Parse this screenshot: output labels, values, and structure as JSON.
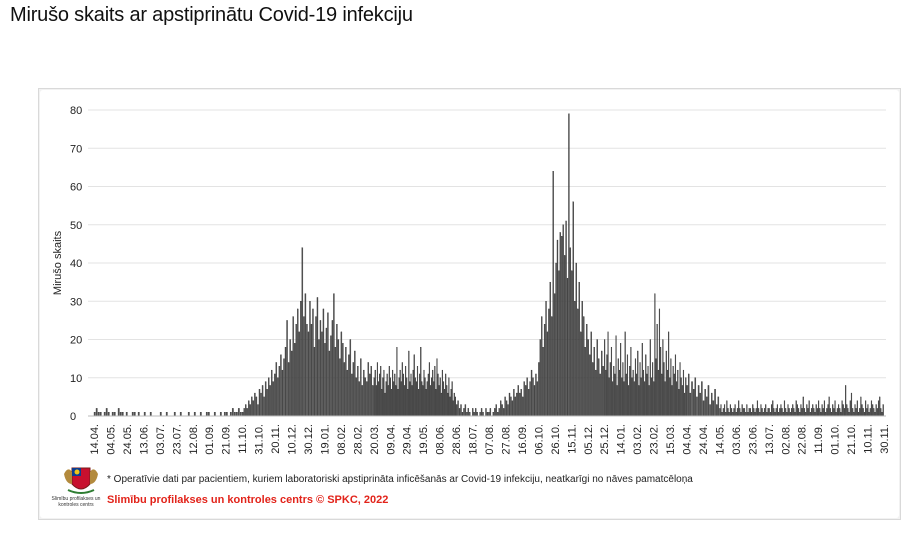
{
  "page": {
    "title": "Mirušo skaits ar apstiprinātu Covid-19 infekciju"
  },
  "footer": {
    "note": "* Operatīvie dati par pacientiem, kuriem laboratoriski apstiprināta inficēšanās ar Covid-19 infekciju, neatkarīgi no nāves pamatcēloņa",
    "credit": "Slimību profilakses un kontroles centrs © SPKC, 2022",
    "logo_caption": "Slimību profilakses un kontroles centrs",
    "credit_color": "#e2231a"
  },
  "chart_data": {
    "type": "bar",
    "title": "",
    "ylabel": "Mirušo skaits",
    "xlabel": "",
    "ylim": [
      0,
      80
    ],
    "yticks": [
      0,
      10,
      20,
      30,
      40,
      50,
      60,
      70,
      80
    ],
    "grid": true,
    "bar_color": "#555555",
    "xticks": [
      "14.04.",
      "04.05.",
      "24.05.",
      "13.06.",
      "03.07.",
      "23.07.",
      "12.08.",
      "01.09.",
      "21.09.",
      "11.10.",
      "31.10.",
      "20.11.",
      "10.12.",
      "30.12.",
      "19.01.",
      "08.02.",
      "28.02.",
      "20.03.",
      "09.04.",
      "29.04.",
      "19.05.",
      "08.06.",
      "28.06.",
      "18.07.",
      "07.08.",
      "27.08.",
      "16.09.",
      "06.10.",
      "26.10.",
      "15.11.",
      "05.12.",
      "25.12.",
      "14.01.",
      "03.02.",
      "23.02.",
      "15.03.",
      "04.04.",
      "24.04.",
      "14.05.",
      "03.06.",
      "23.06.",
      "13.07.",
      "02.08.",
      "22.08.",
      "11.09.",
      "01.10.",
      "21.10.",
      "10.11.",
      "30.11."
    ],
    "segments": [
      {
        "from": "14.04.",
        "to": "11.10.",
        "values": [
          1,
          2,
          1,
          1,
          0,
          1,
          2,
          1,
          0,
          1,
          1,
          0,
          2,
          1,
          1,
          0,
          1,
          0,
          0,
          1,
          1,
          0,
          1,
          0,
          0,
          1,
          0,
          0,
          1,
          0,
          0,
          0,
          0,
          1,
          0,
          0,
          1,
          0,
          0,
          0,
          1,
          0,
          0,
          1,
          0,
          0,
          0,
          1,
          0,
          0,
          1,
          0,
          0,
          1,
          0,
          0,
          1,
          1,
          0,
          0,
          1,
          0,
          0,
          1,
          0,
          1,
          1,
          0,
          1,
          2,
          1,
          1,
          2,
          1
        ]
      },
      {
        "from": "11.10.",
        "to": "30.12.",
        "values": [
          1,
          2,
          3,
          2,
          4,
          3,
          5,
          4,
          6,
          5,
          3,
          7,
          6,
          8,
          5,
          9,
          7,
          10,
          8,
          12,
          9,
          11,
          14,
          10,
          13,
          16,
          12,
          15,
          18,
          25,
          14,
          20,
          17,
          26,
          19,
          24,
          28,
          22,
          30,
          44,
          26,
          32,
          24
        ]
      },
      {
        "from": "30.12.",
        "to": "20.03.",
        "values": [
          22,
          30,
          24,
          28,
          18,
          26,
          31,
          20,
          25,
          22,
          28,
          19,
          23,
          27,
          17,
          21,
          25,
          32,
          18,
          24,
          20,
          15,
          22,
          19,
          14,
          18,
          12,
          16,
          20,
          11,
          14,
          17,
          10,
          13,
          9,
          15,
          8,
          12,
          10,
          9,
          14,
          11,
          13,
          8
        ]
      },
      {
        "from": "20.03.",
        "to": "28.06.",
        "values": [
          10,
          12,
          8,
          14,
          9,
          11,
          13,
          7,
          10,
          12,
          6,
          9,
          11,
          8,
          13,
          10,
          7,
          12,
          9,
          11,
          8,
          18,
          7,
          10,
          12,
          9,
          14,
          11,
          8,
          13,
          10,
          7,
          17,
          9,
          11,
          8,
          12,
          16,
          10,
          9,
          13,
          7,
          11,
          18,
          9,
          8,
          12,
          10,
          7,
          9,
          11,
          14,
          8,
          10,
          12,
          9,
          13,
          7,
          15,
          11,
          8,
          10,
          6,
          12,
          9,
          7,
          11,
          8,
          6,
          10,
          5,
          7,
          9,
          4,
          6,
          5
        ]
      },
      {
        "from": "28.06.",
        "to": "06.10.",
        "values": [
          3,
          4,
          2,
          3,
          1,
          2,
          3,
          1,
          2,
          1,
          0,
          2,
          1,
          2,
          1,
          0,
          1,
          2,
          1,
          0,
          2,
          1,
          1,
          2,
          0,
          1,
          2,
          3,
          1,
          2,
          4,
          3,
          2,
          5,
          4,
          3,
          6,
          5,
          4,
          7,
          5,
          6,
          8,
          6,
          7,
          5,
          9,
          8,
          10,
          7,
          9,
          12,
          10,
          8,
          11,
          9
        ]
      },
      {
        "from": "06.10.",
        "to": "15.11.",
        "values": [
          14,
          20,
          26,
          18,
          24,
          30,
          22,
          28,
          35,
          26,
          64,
          32,
          40,
          46,
          38,
          48,
          47,
          50,
          42,
          51,
          36,
          79,
          44
        ]
      },
      {
        "from": "15.11.",
        "to": "25.12.",
        "values": [
          38,
          56,
          30,
          40,
          28,
          35,
          22,
          30,
          26,
          18,
          24,
          20,
          16,
          22,
          14,
          18,
          12,
          20,
          15,
          11,
          17,
          13
        ]
      },
      {
        "from": "25.12.",
        "to": "04.04.",
        "values": [
          20,
          12,
          16,
          22,
          10,
          14,
          18,
          9,
          13,
          11,
          21,
          8,
          15,
          12,
          19,
          10,
          14,
          9,
          22,
          11,
          16,
          8,
          13,
          18,
          10,
          12,
          9,
          15,
          11,
          17,
          8,
          14,
          10,
          19,
          12,
          9,
          16,
          11,
          13,
          8,
          20,
          10,
          14,
          9,
          32,
          15,
          24,
          12,
          28,
          18,
          11,
          20,
          14,
          9,
          17,
          12,
          22,
          10,
          15,
          8,
          13,
          11,
          16,
          9,
          12,
          7,
          14,
          10,
          8,
          12,
          6,
          10
        ]
      },
      {
        "from": "04.04.",
        "to": "14.05.",
        "values": [
          8,
          11,
          6,
          9,
          7,
          10,
          5,
          8,
          6,
          9,
          4,
          7,
          5,
          8,
          3,
          6,
          4,
          7,
          3,
          5
        ]
      },
      {
        "from": "14.05.",
        "to": "30.11.",
        "values": [
          2,
          3,
          1,
          2,
          3,
          1,
          4,
          2,
          1,
          3,
          2,
          1,
          2,
          3,
          1,
          2,
          4,
          2,
          1,
          3,
          2,
          2,
          1,
          3,
          1,
          2,
          2,
          1,
          3,
          2,
          1,
          2,
          4,
          2,
          1,
          3,
          2,
          1,
          2,
          3,
          1,
          2,
          2,
          1,
          3,
          4,
          2,
          1,
          2,
          3,
          1,
          2,
          3,
          2,
          1,
          4,
          2,
          1,
          3,
          2,
          1,
          2,
          3,
          2,
          1,
          4,
          3,
          2,
          1,
          3,
          2,
          5,
          2,
          1,
          3,
          2,
          4,
          1,
          2,
          3,
          2,
          1,
          3,
          2,
          4,
          2,
          1,
          3,
          2,
          4,
          1,
          2,
          3,
          5,
          2,
          1,
          3,
          2,
          4,
          1,
          2,
          3,
          2,
          1,
          4,
          3,
          2,
          8,
          3,
          2,
          1,
          4,
          6,
          2,
          1,
          3,
          2,
          4,
          1,
          2,
          5,
          3,
          2,
          1,
          4,
          2,
          3,
          1,
          2,
          4,
          3,
          2,
          1,
          3,
          2,
          4,
          5,
          2,
          1,
          3
        ]
      }
    ]
  }
}
